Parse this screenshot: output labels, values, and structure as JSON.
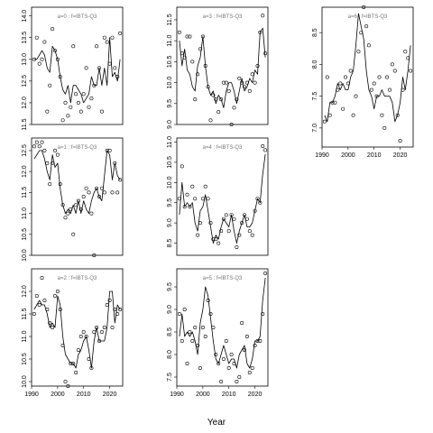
{
  "chart_data": {
    "type": "line",
    "xlabel": "Year",
    "xlim": [
      1990,
      2025
    ],
    "xticks": [
      1990,
      2000,
      2010,
      2020
    ],
    "panels": [
      {
        "title": "a=0 : f=IBTS-Q3",
        "ylim": [
          11.5,
          14.2
        ],
        "yticks": [
          11.5,
          12.0,
          12.5,
          13.0,
          13.5,
          14.0
        ],
        "yticklabels": [
          "11.5",
          "12.0",
          "12.5",
          "13.0",
          "13.5",
          "14.0"
        ],
        "years": [
          1991,
          1992,
          1993,
          1994,
          1995,
          1996,
          1997,
          1998,
          1999,
          2000,
          2001,
          2002,
          2003,
          2004,
          2005,
          2006,
          2007,
          2008,
          2009,
          2010,
          2011,
          2012,
          2013,
          2014,
          2015,
          2016,
          2017,
          2018,
          2019,
          2020,
          2021,
          2022,
          2023,
          2024
        ],
        "model": [
          13.0,
          13.0,
          13.1,
          13.2,
          13.1,
          12.8,
          12.7,
          13.3,
          13.2,
          13.0,
          12.6,
          12.3,
          12.2,
          12.4,
          12.0,
          12.4,
          12.4,
          12.3,
          12.2,
          12.0,
          12.1,
          12.2,
          12.6,
          12.4,
          12.4,
          12.8,
          12.4,
          12.8,
          12.4,
          13.5,
          12.6,
          12.7,
          12.5,
          13.0
        ],
        "observed": [
          13.0,
          13.5,
          12.9,
          13.0,
          13.4,
          11.8,
          12.4,
          13.7,
          13.2,
          13.0,
          12.6,
          11.6,
          12.0,
          11.7,
          11.9,
          13.3,
          12.2,
          12.0,
          11.8,
          12.2,
          12.8,
          11.9,
          12.1,
          12.4,
          13.3,
          12.8,
          11.8,
          13.5,
          13.4,
          12.9,
          13.5,
          12.8,
          12.6,
          13.6
        ]
      },
      {
        "title": "a=1 : f=IBTS-Q3",
        "ylim": [
          10.0,
          12.8
        ],
        "yticks": [
          10.0,
          10.5,
          11.0,
          11.5,
          12.0,
          12.5
        ],
        "yticklabels": [
          "10.0",
          "10.5",
          "11.0",
          "11.5",
          "12.0",
          "12.5"
        ],
        "years": [
          1991,
          1992,
          1993,
          1994,
          1995,
          1996,
          1997,
          1998,
          1999,
          2000,
          2001,
          2002,
          2003,
          2004,
          2005,
          2006,
          2007,
          2008,
          2009,
          2010,
          2011,
          2012,
          2013,
          2014,
          2015,
          2016,
          2017,
          2018,
          2019,
          2020,
          2021,
          2022,
          2023,
          2024
        ],
        "model": [
          12.3,
          12.4,
          12.5,
          12.5,
          12.3,
          12.0,
          11.8,
          12.4,
          12.1,
          12.2,
          11.6,
          11.2,
          11.0,
          11.1,
          11.0,
          11.2,
          11.0,
          11.3,
          11.0,
          11.3,
          11.1,
          11.0,
          11.3,
          11.5,
          11.6,
          11.4,
          11.3,
          11.9,
          12.5,
          12.4,
          11.8,
          12.2,
          11.9,
          11.8
        ],
        "observed": [
          12.6,
          12.7,
          12.6,
          12.7,
          12.5,
          12.2,
          11.7,
          12.2,
          12.5,
          12.4,
          11.7,
          11.2,
          10.9,
          11.0,
          11.1,
          10.5,
          11.2,
          11.3,
          11.1,
          11.4,
          11.6,
          11.5,
          11.0,
          10.0,
          11.6,
          11.4,
          11.6,
          11.5,
          12.5,
          12.5,
          11.5,
          12.2,
          11.5,
          11.8
        ]
      },
      {
        "title": "a=2 : f=IBTS-Q3",
        "ylim": [
          9.9,
          12.5
        ],
        "yticks": [
          10.0,
          10.5,
          11.0,
          11.5,
          12.0
        ],
        "yticklabels": [
          "10.0",
          "10.5",
          "11.0",
          "11.5",
          "12.0"
        ],
        "years": [
          1991,
          1992,
          1993,
          1994,
          1995,
          1996,
          1997,
          1998,
          1999,
          2000,
          2001,
          2002,
          2003,
          2004,
          2005,
          2006,
          2007,
          2008,
          2009,
          2010,
          2011,
          2012,
          2013,
          2014,
          2015,
          2016,
          2017,
          2018,
          2019,
          2020,
          2021,
          2022,
          2023,
          2024
        ],
        "model": [
          11.6,
          11.7,
          11.8,
          11.7,
          11.7,
          11.5,
          11.2,
          11.3,
          11.2,
          11.9,
          11.7,
          11.0,
          10.6,
          10.5,
          10.4,
          10.4,
          10.3,
          10.6,
          10.7,
          10.9,
          11.0,
          10.7,
          10.3,
          10.9,
          11.2,
          10.9,
          10.9,
          10.9,
          11.2,
          12.0,
          12.0,
          11.3,
          11.7,
          11.6
        ],
        "observed": [
          11.5,
          11.9,
          11.7,
          12.3,
          11.8,
          11.6,
          11.3,
          11.2,
          11.9,
          12.0,
          11.6,
          10.8,
          10.0,
          9.9,
          10.4,
          10.4,
          10.2,
          10.7,
          11.0,
          11.1,
          11.0,
          10.5,
          10.3,
          11.1,
          11.2,
          10.9,
          11.1,
          11.2,
          11.7,
          11.8,
          11.2,
          11.6,
          11.5,
          11.6
        ]
      },
      {
        "title": "a=3 : f=IBTS-Q3",
        "ylim": [
          9.0,
          11.8
        ],
        "yticks": [
          9.0,
          9.5,
          10.0,
          10.5,
          11.0,
          11.5
        ],
        "yticklabels": [
          "9.0",
          "9.5",
          "10.0",
          "10.5",
          "11.0",
          "11.5"
        ],
        "years": [
          1991,
          1992,
          1993,
          1994,
          1995,
          1996,
          1997,
          1998,
          1999,
          2000,
          2001,
          2002,
          2003,
          2004,
          2005,
          2006,
          2007,
          2008,
          2009,
          2010,
          2011,
          2012,
          2013,
          2014,
          2015,
          2016,
          2017,
          2018,
          2019,
          2020,
          2021,
          2022,
          2023,
          2024
        ],
        "model": [
          11.0,
          10.4,
          10.8,
          10.3,
          10.2,
          9.9,
          9.8,
          10.4,
          10.6,
          11.1,
          10.4,
          9.9,
          9.7,
          9.8,
          9.5,
          9.7,
          9.6,
          9.4,
          9.8,
          10.0,
          10.0,
          9.8,
          9.5,
          9.8,
          10.1,
          9.8,
          9.9,
          10.1,
          10.0,
          10.3,
          10.2,
          11.2,
          11.3,
          10.6
        ],
        "observed": [
          11.2,
          10.7,
          10.6,
          11.1,
          11.1,
          10.5,
          9.6,
          10.2,
          10.8,
          11.1,
          10.4,
          9.9,
          9.1,
          9.7,
          9.6,
          9.3,
          9.6,
          10.0,
          10.0,
          9.8,
          9.0,
          9.4,
          9.6,
          10.1,
          10.0,
          9.9,
          10.0,
          9.8,
          10.2,
          10.0,
          10.4,
          11.2,
          11.6,
          10.7
        ]
      },
      {
        "title": "a=4 : f=IBTS-Q3",
        "ylim": [
          8.2,
          11.1
        ],
        "yticks": [
          8.5,
          9.0,
          9.5,
          10.0,
          10.5,
          11.0
        ],
        "yticklabels": [
          "8.5",
          "9.0",
          "9.5",
          "10.0",
          "10.5",
          "11.0"
        ],
        "years": [
          1991,
          1992,
          1993,
          1994,
          1995,
          1996,
          1997,
          1998,
          1999,
          2000,
          2001,
          2002,
          2003,
          2004,
          2005,
          2006,
          2007,
          2008,
          2009,
          2010,
          2011,
          2012,
          2013,
          2014,
          2015,
          2016,
          2017,
          2018,
          2019,
          2020,
          2021,
          2022,
          2023,
          2024
        ],
        "model": [
          9.2,
          10.0,
          9.4,
          9.5,
          9.4,
          9.5,
          9.0,
          8.8,
          9.3,
          9.4,
          9.7,
          9.3,
          8.9,
          8.5,
          8.7,
          8.6,
          8.9,
          9.1,
          9.0,
          8.9,
          9.2,
          8.8,
          8.5,
          8.8,
          9.0,
          9.2,
          8.9,
          8.9,
          9.0,
          9.3,
          9.6,
          9.5,
          10.2,
          10.7
        ],
        "observed": [
          9.6,
          10.4,
          9.4,
          9.7,
          9.4,
          9.9,
          9.6,
          8.7,
          9.0,
          9.6,
          9.9,
          9.6,
          9.0,
          8.6,
          8.6,
          8.5,
          8.8,
          9.1,
          9.2,
          8.8,
          9.2,
          9.1,
          8.4,
          8.7,
          9.0,
          9.2,
          9.1,
          8.8,
          8.7,
          9.3,
          9.6,
          9.5,
          10.9,
          10.8
        ]
      },
      {
        "title": "a=5 : f=IBTS-Q3",
        "ylim": [
          7.3,
          9.9
        ],
        "yticks": [
          7.5,
          8.0,
          8.5,
          9.0,
          9.5
        ],
        "yticklabels": [
          "7.5",
          "8.0",
          "8.5",
          "9.0",
          "9.5"
        ],
        "years": [
          1991,
          1992,
          1993,
          1994,
          1995,
          1996,
          1997,
          1998,
          1999,
          2000,
          2001,
          2002,
          2003,
          2004,
          2005,
          2006,
          2007,
          2008,
          2009,
          2010,
          2011,
          2012,
          2013,
          2014,
          2015,
          2016,
          2017,
          2018,
          2019,
          2020,
          2021,
          2022,
          2023,
          2024
        ],
        "model": [
          8.4,
          8.9,
          8.4,
          8.5,
          8.4,
          8.5,
          8.3,
          8.0,
          8.7,
          9.0,
          9.5,
          9.3,
          8.8,
          8.3,
          7.9,
          7.8,
          8.0,
          8.2,
          8.0,
          7.8,
          7.9,
          7.9,
          7.7,
          8.0,
          8.1,
          8.2,
          7.8,
          7.7,
          7.9,
          8.3,
          8.3,
          8.4,
          9.2,
          9.7
        ],
        "observed": [
          8.9,
          8.3,
          9.0,
          7.8,
          8.5,
          8.3,
          8.6,
          8.2,
          7.7,
          8.6,
          8.4,
          9.2,
          8.9,
          8.6,
          8.0,
          7.8,
          7.4,
          7.9,
          8.3,
          7.7,
          8.0,
          7.8,
          7.4,
          7.5,
          8.7,
          8.1,
          8.4,
          7.6,
          7.7,
          8.2,
          8.3,
          8.3,
          8.9,
          9.8
        ]
      },
      {
        "title": "a=6 : f=IBTS-Q3",
        "ylim": [
          6.7,
          8.9
        ],
        "yticks": [
          7.0,
          7.5,
          8.0,
          8.5
        ],
        "yticklabels": [
          "7.0",
          "7.5",
          "8.0",
          "8.5"
        ],
        "years": [
          1991,
          1992,
          1993,
          1994,
          1995,
          1996,
          1997,
          1998,
          1999,
          2000,
          2001,
          2002,
          2003,
          2004,
          2005,
          2006,
          2007,
          2008,
          2009,
          2010,
          2011,
          2012,
          2013,
          2014,
          2015,
          2016,
          2017,
          2018,
          2019,
          2020,
          2021,
          2022,
          2023,
          2024
        ],
        "model": [
          7.2,
          7.1,
          7.4,
          7.4,
          7.5,
          7.7,
          7.6,
          7.7,
          7.6,
          7.6,
          7.8,
          7.9,
          8.3,
          8.8,
          8.6,
          8.4,
          7.9,
          7.6,
          7.5,
          7.3,
          7.5,
          7.5,
          7.6,
          7.5,
          7.5,
          7.5,
          7.4,
          7.1,
          7.2,
          7.4,
          7.8,
          7.6,
          7.9,
          8.3
        ],
        "observed": [
          7.1,
          7.8,
          7.2,
          7.4,
          7.4,
          7.6,
          7.7,
          7.3,
          7.8,
          7.7,
          7.9,
          7.2,
          7.5,
          8.2,
          8.5,
          8.9,
          8.6,
          8.3,
          7.6,
          7.7,
          7.5,
          7.8,
          7.2,
          7.0,
          7.8,
          7.6,
          8.0,
          7.9,
          7.2,
          6.8,
          7.6,
          8.2,
          8.1,
          7.9
        ]
      }
    ]
  }
}
